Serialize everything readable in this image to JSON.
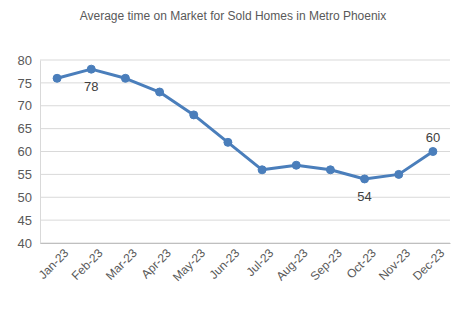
{
  "chart_data": {
    "type": "line",
    "title": "Average time on Market for Sold Homes in Metro Phoenix",
    "categories": [
      "Jan-23",
      "Feb-23",
      "Mar-23",
      "Apr-23",
      "May-23",
      "Jun-23",
      "Jul-23",
      "Aug-23",
      "Sep-23",
      "Oct-23",
      "Nov-23",
      "Dec-23"
    ],
    "values": [
      76,
      78,
      76,
      73,
      68,
      62,
      56,
      57,
      56,
      54,
      55,
      60
    ],
    "value_labels": [
      null,
      "78",
      null,
      null,
      null,
      null,
      null,
      null,
      null,
      "54",
      null,
      "60"
    ],
    "data_labels": true,
    "color": "#4a7ebb",
    "marker": "circle",
    "line_style": "solid",
    "ylim": [
      40,
      80
    ],
    "yticks": [
      40,
      45,
      50,
      55,
      60,
      65,
      70,
      75,
      80
    ],
    "grid": true
  }
}
